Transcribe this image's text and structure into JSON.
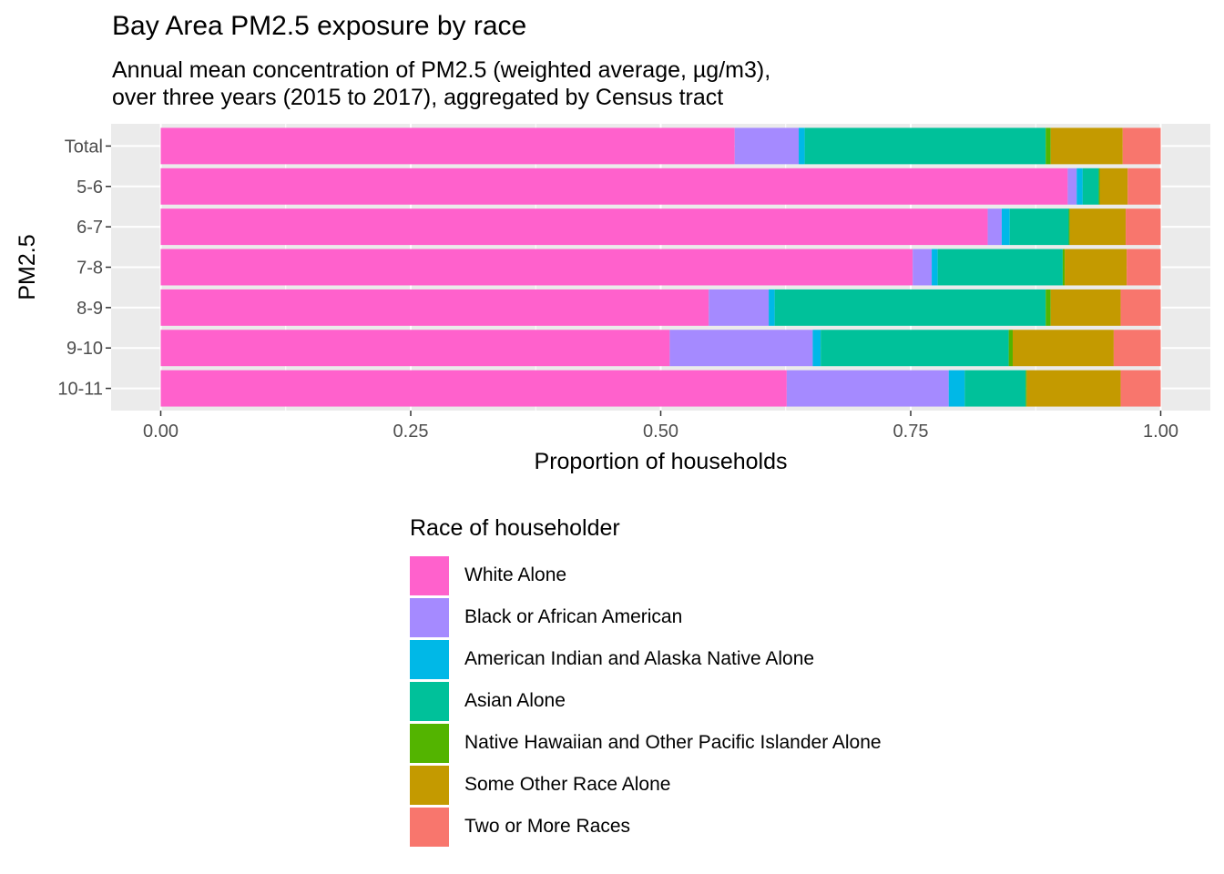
{
  "chart_data": {
    "type": "bar",
    "orientation": "horizontal",
    "stacked": true,
    "title": "Bay Area PM2.5 exposure by race",
    "subtitle": [
      "Annual mean concentration of PM2.5 (weighted average, µg/m3),",
      "over three years (2015 to 2017), aggregated by Census tract"
    ],
    "xlabel": "Proportion of households",
    "ylabel": "PM2.5",
    "xlim": [
      0,
      1
    ],
    "xticks": [
      "0.00",
      "0.25",
      "0.50",
      "0.75",
      "1.00"
    ],
    "categories": [
      "Total",
      "5-6",
      "6-7",
      "7-8",
      "8-9",
      "9-10",
      "10-11"
    ],
    "legend_title": "Race of householder",
    "legend_position": "bottom",
    "grid": true,
    "series": [
      {
        "name": "White Alone",
        "color": "#FF61CC",
        "values": [
          0.574,
          0.907,
          0.827,
          0.752,
          0.548,
          0.509,
          0.626
        ]
      },
      {
        "name": "Black or African American",
        "color": "#A58AFF",
        "values": [
          0.064,
          0.009,
          0.014,
          0.019,
          0.06,
          0.143,
          0.162
        ]
      },
      {
        "name": "American Indian and Alaska Native Alone",
        "color": "#00B8E7",
        "values": [
          0.006,
          0.006,
          0.008,
          0.006,
          0.006,
          0.008,
          0.016
        ]
      },
      {
        "name": "Asian Alone",
        "color": "#00C19A",
        "values": [
          0.241,
          0.016,
          0.059,
          0.125,
          0.271,
          0.188,
          0.061
        ]
      },
      {
        "name": "Native Hawaiian and Other Pacific Islander Alone",
        "color": "#53B400",
        "values": [
          0.005,
          0.001,
          0.001,
          0.002,
          0.005,
          0.004,
          0.001
        ]
      },
      {
        "name": "Some Other Race Alone",
        "color": "#C49A00",
        "values": [
          0.072,
          0.028,
          0.056,
          0.062,
          0.07,
          0.101,
          0.094
        ]
      },
      {
        "name": "Two or More Races",
        "color": "#F8766D",
        "values": [
          0.038,
          0.033,
          0.035,
          0.034,
          0.04,
          0.047,
          0.04
        ]
      }
    ]
  }
}
